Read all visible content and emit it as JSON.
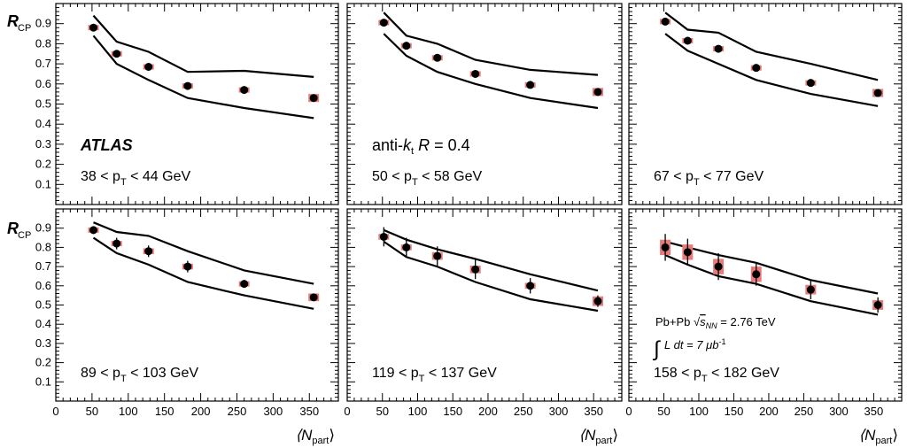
{
  "chart_data": {
    "type": "scatter",
    "figure": {
      "ylabel": "R",
      "ylabel_sub": "CP",
      "xlabel": "⟨N",
      "xlabel_sub": "part",
      "xlabel_close": "⟩",
      "xlim": [
        0,
        390
      ],
      "ylim": [
        0,
        1.0
      ],
      "x_ticks": [
        0,
        50,
        100,
        150,
        200,
        250,
        300,
        350
      ],
      "y_ticks": [
        0.1,
        0.2,
        0.3,
        0.4,
        0.5,
        0.6,
        0.7,
        0.8,
        0.9
      ],
      "x_tick_labels": [
        "0",
        "50",
        "100",
        "150",
        "200",
        "250",
        "300",
        "350"
      ],
      "y_tick_labels": [
        "0.1",
        "0.2",
        "0.3",
        "0.4",
        "0.5",
        "0.6",
        "0.7",
        "0.8",
        "0.9"
      ],
      "grid": false
    },
    "panels": [
      {
        "pt_pre": "38 < p",
        "pt_sub": "T",
        "pt_post": " < 44 GeV",
        "extra_label": "ATLAS",
        "x": [
          52,
          84,
          128,
          182,
          260,
          356
        ],
        "y": [
          0.88,
          0.75,
          0.685,
          0.59,
          0.57,
          0.53
        ],
        "yerr": [
          0.005,
          0.005,
          0.005,
          0.005,
          0.005,
          0.005
        ],
        "syst": [
          0.01,
          0.01,
          0.01,
          0.01,
          0.01,
          0.02
        ],
        "band_x": [
          52,
          84,
          128,
          182,
          260,
          356
        ],
        "band_upper": [
          0.94,
          0.81,
          0.76,
          0.66,
          0.665,
          0.635
        ],
        "band_lower": [
          0.84,
          0.7,
          0.62,
          0.53,
          0.48,
          0.43
        ]
      },
      {
        "pt_pre": "50 < p",
        "pt_sub": "T",
        "pt_post": " < 58 GeV",
        "extra_label": "anti-k_t R = 0.4",
        "x": [
          52,
          84,
          128,
          182,
          260,
          356
        ],
        "y": [
          0.905,
          0.79,
          0.73,
          0.65,
          0.595,
          0.56
        ],
        "yerr": [
          0.005,
          0.005,
          0.005,
          0.005,
          0.005,
          0.005
        ],
        "syst": [
          0.01,
          0.01,
          0.01,
          0.01,
          0.01,
          0.02
        ],
        "band_x": [
          52,
          84,
          128,
          182,
          260,
          356
        ],
        "band_upper": [
          0.955,
          0.84,
          0.8,
          0.72,
          0.67,
          0.645
        ],
        "band_lower": [
          0.85,
          0.74,
          0.66,
          0.6,
          0.53,
          0.48
        ]
      },
      {
        "pt_pre": "67 < p",
        "pt_sub": "T",
        "pt_post": " < 77 GeV",
        "extra_label": "",
        "x": [
          52,
          84,
          128,
          182,
          260,
          356
        ],
        "y": [
          0.91,
          0.815,
          0.775,
          0.68,
          0.605,
          0.555
        ],
        "yerr": [
          0.005,
          0.005,
          0.005,
          0.005,
          0.005,
          0.005
        ],
        "syst": [
          0.01,
          0.01,
          0.01,
          0.01,
          0.01,
          0.02
        ],
        "band_x": [
          52,
          84,
          128,
          182,
          260,
          356
        ],
        "band_upper": [
          0.955,
          0.87,
          0.855,
          0.76,
          0.7,
          0.62
        ],
        "band_lower": [
          0.85,
          0.765,
          0.7,
          0.62,
          0.55,
          0.49
        ]
      },
      {
        "pt_pre": "89 < p",
        "pt_sub": "T",
        "pt_post": " < 103 GeV",
        "extra_label": "",
        "x": [
          52,
          84,
          128,
          182,
          260,
          356
        ],
        "y": [
          0.89,
          0.82,
          0.78,
          0.7,
          0.61,
          0.54
        ],
        "yerr": [
          0.02,
          0.03,
          0.03,
          0.03,
          0.02,
          0.015
        ],
        "syst": [
          0.01,
          0.01,
          0.015,
          0.015,
          0.01,
          0.02
        ],
        "band_x": [
          52,
          84,
          128,
          182,
          260,
          356
        ],
        "band_upper": [
          0.93,
          0.88,
          0.86,
          0.78,
          0.68,
          0.61
        ],
        "band_lower": [
          0.85,
          0.77,
          0.71,
          0.62,
          0.55,
          0.48
        ]
      },
      {
        "pt_pre": "119 < p",
        "pt_sub": "T",
        "pt_post": " < 137 GeV",
        "extra_label": "",
        "x": [
          52,
          84,
          128,
          182,
          260,
          356
        ],
        "y": [
          0.855,
          0.8,
          0.755,
          0.685,
          0.6,
          0.52
        ],
        "yerr": [
          0.05,
          0.05,
          0.05,
          0.05,
          0.04,
          0.03
        ],
        "syst": [
          0.015,
          0.015,
          0.02,
          0.02,
          0.015,
          0.025
        ],
        "band_x": [
          52,
          84,
          128,
          182,
          260,
          356
        ],
        "band_upper": [
          0.89,
          0.84,
          0.79,
          0.74,
          0.66,
          0.575
        ],
        "band_lower": [
          0.83,
          0.75,
          0.7,
          0.62,
          0.53,
          0.47
        ]
      },
      {
        "pt_pre": "158 < p",
        "pt_sub": "T",
        "pt_post": " < 182 GeV",
        "extra_label": "",
        "x": [
          52,
          84,
          128,
          182,
          260,
          356
        ],
        "y": [
          0.8,
          0.775,
          0.7,
          0.66,
          0.58,
          0.5
        ],
        "yerr": [
          0.07,
          0.07,
          0.07,
          0.06,
          0.05,
          0.04
        ],
        "syst": [
          0.04,
          0.04,
          0.04,
          0.04,
          0.025,
          0.025
        ],
        "band_x": [
          52,
          84,
          128,
          182,
          260,
          356
        ],
        "band_upper": [
          0.83,
          0.8,
          0.76,
          0.72,
          0.63,
          0.56
        ],
        "band_lower": [
          0.76,
          0.71,
          0.65,
          0.61,
          0.52,
          0.45
        ]
      }
    ],
    "annotations": {
      "system": "Pb+Pb",
      "energy_symbol": "s",
      "energy_sub": "NN",
      "energy_value": " = 2.76 TeV",
      "lumi_pre": "L dt = 7 μb",
      "lumi_exp": "-1"
    }
  },
  "colors": {
    "axis": "#000000",
    "marker": "#000000",
    "syst_box": "#e87a7a",
    "band": "#000000"
  }
}
